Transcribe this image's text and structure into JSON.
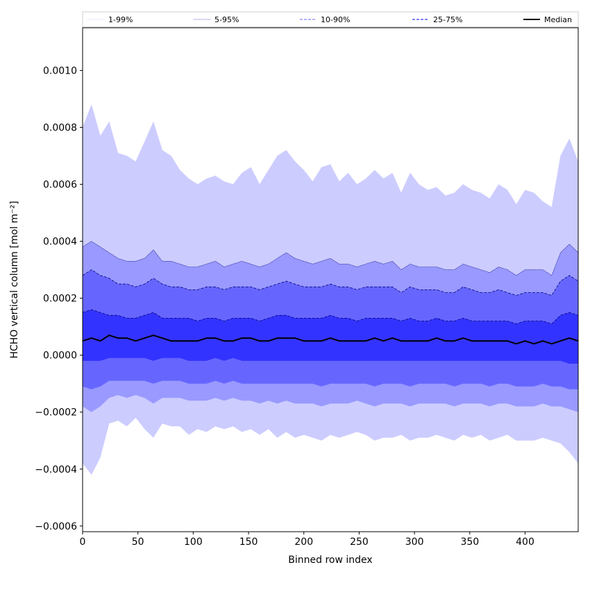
{
  "chart_data": {
    "type": "area",
    "xlabel": "Binned row index",
    "ylabel": "HCHO vertical column [mol m⁻²]",
    "xlim": [
      0,
      448
    ],
    "ylim": [
      -0.00062,
      0.00115
    ],
    "x_ticks": [
      0,
      50,
      100,
      150,
      200,
      250,
      300,
      350,
      400
    ],
    "x_tick_labels": [
      "0",
      "50",
      "100",
      "150",
      "200",
      "250",
      "300",
      "350",
      "400"
    ],
    "y_ticks": [
      -0.0006,
      -0.0004,
      -0.0002,
      0.0,
      0.0002,
      0.0004,
      0.0006,
      0.0008,
      0.001
    ],
    "y_tick_labels": [
      "−0.0006",
      "−0.0004",
      "−0.0002",
      "0.0000",
      "0.0002",
      "0.0004",
      "0.0006",
      "0.0008",
      "0.0010"
    ],
    "legend": {
      "placement": "top",
      "entries": [
        "1-99%",
        "5-95%",
        "10-90%",
        "25-75%",
        "Median"
      ]
    },
    "x": [
      0,
      8,
      16,
      24,
      32,
      40,
      48,
      56,
      64,
      72,
      80,
      88,
      96,
      104,
      112,
      120,
      128,
      136,
      144,
      152,
      160,
      168,
      176,
      184,
      192,
      200,
      208,
      216,
      224,
      232,
      240,
      248,
      256,
      264,
      272,
      280,
      288,
      296,
      304,
      312,
      320,
      328,
      336,
      344,
      352,
      360,
      368,
      376,
      384,
      392,
      400,
      408,
      416,
      424,
      432,
      440,
      448
    ],
    "series": [
      {
        "name": "1-99%",
        "color": "#ccccff",
        "upper": [
          0.0008,
          0.00088,
          0.00077,
          0.00082,
          0.00071,
          0.0007,
          0.00068,
          0.00075,
          0.00082,
          0.00072,
          0.0007,
          0.00065,
          0.00062,
          0.0006,
          0.00062,
          0.00063,
          0.00061,
          0.0006,
          0.00064,
          0.00066,
          0.0006,
          0.00065,
          0.0007,
          0.00072,
          0.00068,
          0.00065,
          0.00061,
          0.00066,
          0.00067,
          0.00061,
          0.00064,
          0.0006,
          0.00062,
          0.00065,
          0.00062,
          0.00064,
          0.00057,
          0.00064,
          0.0006,
          0.00058,
          0.00059,
          0.00056,
          0.00057,
          0.0006,
          0.00058,
          0.00057,
          0.00055,
          0.0006,
          0.00058,
          0.00053,
          0.00058,
          0.00057,
          0.00054,
          0.00052,
          0.0007,
          0.00076,
          0.00068
        ],
        "lower": [
          -0.00038,
          -0.00042,
          -0.00036,
          -0.00024,
          -0.00023,
          -0.00025,
          -0.00022,
          -0.00026,
          -0.00029,
          -0.00024,
          -0.00025,
          -0.00025,
          -0.00028,
          -0.00026,
          -0.00027,
          -0.00025,
          -0.00026,
          -0.00025,
          -0.00027,
          -0.00026,
          -0.00028,
          -0.00026,
          -0.00029,
          -0.00027,
          -0.00029,
          -0.00028,
          -0.00029,
          -0.0003,
          -0.00028,
          -0.00029,
          -0.00028,
          -0.00027,
          -0.00028,
          -0.0003,
          -0.00029,
          -0.00029,
          -0.00028,
          -0.0003,
          -0.00029,
          -0.00029,
          -0.00028,
          -0.00029,
          -0.0003,
          -0.00028,
          -0.00029,
          -0.00028,
          -0.0003,
          -0.00029,
          -0.00028,
          -0.0003,
          -0.0003,
          -0.0003,
          -0.00029,
          -0.0003,
          -0.00031,
          -0.00034,
          -0.00038
        ]
      },
      {
        "name": "5-95%",
        "color": "#9999ff",
        "upper": [
          0.00038,
          0.0004,
          0.00038,
          0.00036,
          0.00034,
          0.00033,
          0.00033,
          0.00034,
          0.00037,
          0.00033,
          0.00033,
          0.00032,
          0.00031,
          0.00031,
          0.00032,
          0.00033,
          0.00031,
          0.00032,
          0.00033,
          0.00032,
          0.00031,
          0.00032,
          0.00034,
          0.00036,
          0.00034,
          0.00033,
          0.00032,
          0.00033,
          0.00034,
          0.00032,
          0.00032,
          0.00031,
          0.00032,
          0.00033,
          0.00032,
          0.00033,
          0.0003,
          0.00032,
          0.00031,
          0.00031,
          0.00031,
          0.0003,
          0.0003,
          0.00032,
          0.00031,
          0.0003,
          0.00029,
          0.00031,
          0.0003,
          0.00028,
          0.0003,
          0.0003,
          0.0003,
          0.00028,
          0.00036,
          0.00039,
          0.00036
        ],
        "lower": [
          -0.00018,
          -0.0002,
          -0.00018,
          -0.00015,
          -0.00014,
          -0.00015,
          -0.00014,
          -0.00015,
          -0.00017,
          -0.00015,
          -0.00015,
          -0.00015,
          -0.00016,
          -0.00016,
          -0.00016,
          -0.00015,
          -0.00016,
          -0.00015,
          -0.00016,
          -0.00016,
          -0.00017,
          -0.00016,
          -0.00017,
          -0.00016,
          -0.00017,
          -0.00017,
          -0.00017,
          -0.00018,
          -0.00017,
          -0.00017,
          -0.00017,
          -0.00016,
          -0.00017,
          -0.00018,
          -0.00017,
          -0.00017,
          -0.00017,
          -0.00018,
          -0.00017,
          -0.00017,
          -0.00017,
          -0.00017,
          -0.00018,
          -0.00017,
          -0.00017,
          -0.00017,
          -0.00018,
          -0.00017,
          -0.00017,
          -0.00018,
          -0.00018,
          -0.00018,
          -0.00017,
          -0.00018,
          -0.00018,
          -0.00019,
          -0.0002
        ]
      },
      {
        "name": "10-90%",
        "color": "#6666ff",
        "upper": [
          0.00028,
          0.0003,
          0.00028,
          0.00027,
          0.00025,
          0.00025,
          0.00024,
          0.00025,
          0.00027,
          0.00025,
          0.00024,
          0.00024,
          0.00023,
          0.00023,
          0.00024,
          0.00024,
          0.00023,
          0.00024,
          0.00024,
          0.00024,
          0.00023,
          0.00024,
          0.00025,
          0.00026,
          0.00025,
          0.00024,
          0.00024,
          0.00024,
          0.00025,
          0.00024,
          0.00024,
          0.00023,
          0.00024,
          0.00024,
          0.00024,
          0.00024,
          0.00022,
          0.00024,
          0.00023,
          0.00023,
          0.00023,
          0.00022,
          0.00022,
          0.00024,
          0.00023,
          0.00022,
          0.00022,
          0.00023,
          0.00022,
          0.00021,
          0.00022,
          0.00022,
          0.00022,
          0.00021,
          0.00026,
          0.00028,
          0.00026
        ],
        "lower": [
          -0.00011,
          -0.00012,
          -0.00011,
          -9e-05,
          -9e-05,
          -9e-05,
          -9e-05,
          -9e-05,
          -0.0001,
          -9e-05,
          -9e-05,
          -9e-05,
          -0.0001,
          -0.0001,
          -0.0001,
          -9e-05,
          -0.0001,
          -9e-05,
          -0.0001,
          -0.0001,
          -0.0001,
          -0.0001,
          -0.0001,
          -0.0001,
          -0.0001,
          -0.0001,
          -0.0001,
          -0.00011,
          -0.0001,
          -0.0001,
          -0.0001,
          -0.0001,
          -0.0001,
          -0.00011,
          -0.0001,
          -0.0001,
          -0.0001,
          -0.00011,
          -0.0001,
          -0.0001,
          -0.0001,
          -0.0001,
          -0.00011,
          -0.0001,
          -0.0001,
          -0.0001,
          -0.00011,
          -0.0001,
          -0.0001,
          -0.00011,
          -0.00011,
          -0.00011,
          -0.0001,
          -0.00011,
          -0.00011,
          -0.00012,
          -0.00012
        ]
      },
      {
        "name": "25-75%",
        "color": "#3333ff",
        "upper": [
          0.00015,
          0.00016,
          0.00015,
          0.00014,
          0.00014,
          0.00013,
          0.00013,
          0.00014,
          0.00015,
          0.00013,
          0.00013,
          0.00013,
          0.00013,
          0.00012,
          0.00013,
          0.00013,
          0.00012,
          0.00013,
          0.00013,
          0.00013,
          0.00012,
          0.00013,
          0.00014,
          0.00014,
          0.00013,
          0.00013,
          0.00013,
          0.00013,
          0.00014,
          0.00013,
          0.00013,
          0.00012,
          0.00013,
          0.00013,
          0.00013,
          0.00013,
          0.00012,
          0.00013,
          0.00012,
          0.00012,
          0.00013,
          0.00012,
          0.00012,
          0.00013,
          0.00012,
          0.00012,
          0.00012,
          0.00012,
          0.00012,
          0.00011,
          0.00012,
          0.00012,
          0.00012,
          0.00011,
          0.00014,
          0.00015,
          0.00014
        ],
        "lower": [
          -2e-05,
          -2e-05,
          -2e-05,
          -1e-05,
          -1e-05,
          -1e-05,
          -1e-05,
          -1e-05,
          -2e-05,
          -1e-05,
          -1e-05,
          -1e-05,
          -2e-05,
          -2e-05,
          -2e-05,
          -1e-05,
          -2e-05,
          -1e-05,
          -2e-05,
          -2e-05,
          -2e-05,
          -2e-05,
          -2e-05,
          -2e-05,
          -2e-05,
          -2e-05,
          -2e-05,
          -2e-05,
          -2e-05,
          -2e-05,
          -2e-05,
          -2e-05,
          -2e-05,
          -2e-05,
          -2e-05,
          -2e-05,
          -2e-05,
          -2e-05,
          -2e-05,
          -2e-05,
          -2e-05,
          -2e-05,
          -2e-05,
          -2e-05,
          -2e-05,
          -2e-05,
          -2e-05,
          -2e-05,
          -2e-05,
          -2e-05,
          -2e-05,
          -2e-05,
          -2e-05,
          -2e-05,
          -2e-05,
          -3e-05,
          -3e-05
        ]
      },
      {
        "name": "Median",
        "color": "#000000",
        "values": [
          5e-05,
          6e-05,
          5e-05,
          7e-05,
          6e-05,
          6e-05,
          5e-05,
          6e-05,
          7e-05,
          6e-05,
          5e-05,
          5e-05,
          5e-05,
          5e-05,
          6e-05,
          6e-05,
          5e-05,
          5e-05,
          6e-05,
          6e-05,
          5e-05,
          5e-05,
          6e-05,
          6e-05,
          6e-05,
          5e-05,
          5e-05,
          5e-05,
          6e-05,
          5e-05,
          5e-05,
          5e-05,
          5e-05,
          6e-05,
          5e-05,
          6e-05,
          5e-05,
          5e-05,
          5e-05,
          5e-05,
          6e-05,
          5e-05,
          5e-05,
          6e-05,
          5e-05,
          5e-05,
          5e-05,
          5e-05,
          5e-05,
          4e-05,
          5e-05,
          4e-05,
          5e-05,
          4e-05,
          5e-05,
          6e-05,
          5e-05
        ]
      }
    ]
  }
}
